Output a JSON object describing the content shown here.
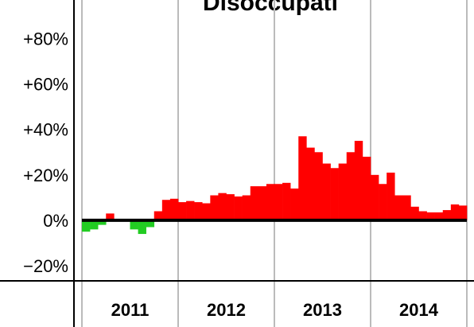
{
  "chart_data": {
    "type": "bar",
    "title": "Disoccupati",
    "categories": [
      null,
      null,
      null,
      null,
      null,
      null,
      "2011",
      null,
      null,
      null,
      null,
      null,
      null,
      null,
      null,
      null,
      null,
      null,
      "2012",
      null,
      null,
      null,
      null,
      null,
      null,
      null,
      null,
      null,
      null,
      null,
      "2013",
      null,
      null,
      null,
      null,
      null,
      null,
      null,
      null,
      null,
      null,
      null,
      "2014",
      null,
      null,
      null,
      null,
      null
    ],
    "values": [
      -5,
      -4,
      -2,
      3,
      0.5,
      0,
      -4,
      -6,
      -3,
      4,
      9,
      9.5,
      8,
      8.5,
      8,
      7.5,
      11,
      12,
      11.5,
      10.5,
      11,
      15,
      15,
      16,
      16,
      16.5,
      14,
      37,
      32,
      30,
      25,
      23,
      25,
      30,
      35,
      28,
      20,
      16,
      21,
      11,
      11,
      6,
      4,
      3.5,
      3.5,
      4.5,
      7,
      6.5
    ],
    "color": "#ff0000",
    "negative_color": "#22cc22",
    "ylim": [
      -27,
      97
    ],
    "yticks": [
      {
        "value": -20,
        "label": "−20%"
      },
      {
        "value": 0,
        "label": "0%"
      },
      {
        "value": 20,
        "label": "+20%"
      },
      {
        "value": 40,
        "label": "+40%"
      },
      {
        "value": 60,
        "label": "+60%"
      },
      {
        "value": 80,
        "label": "+80%"
      }
    ],
    "grid": true
  }
}
